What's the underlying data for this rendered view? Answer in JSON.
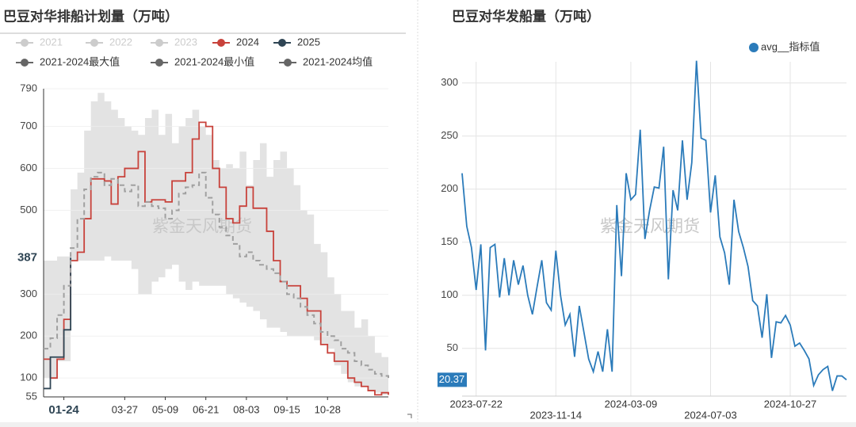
{
  "chart_data": [
    {
      "type": "line",
      "title": "巴豆对华排船计划量（万吨）",
      "watermark": "紫金天风期货",
      "step": true,
      "grid": true,
      "categories": [
        null,
        null,
        null,
        "01-24",
        null,
        null,
        null,
        null,
        null,
        null,
        null,
        null,
        "03-27",
        null,
        null,
        null,
        null,
        null,
        "05-09",
        null,
        null,
        null,
        null,
        null,
        "06-21",
        null,
        null,
        null,
        null,
        null,
        "08-03",
        null,
        null,
        null,
        null,
        null,
        "09-15",
        null,
        null,
        null,
        null,
        null,
        "10-28",
        null,
        null,
        null,
        null,
        null,
        null,
        null,
        null,
        null
      ],
      "x_pointer": 3,
      "ylim": [
        55,
        790
      ],
      "yticks": [
        55,
        100,
        200,
        300,
        500,
        600,
        700,
        790
      ],
      "series": [
        {
          "name": "2021",
          "color": "#cccccc",
          "visible": false
        },
        {
          "name": "2022",
          "color": "#cccccc",
          "visible": false
        },
        {
          "name": "2023",
          "color": "#cccccc",
          "visible": false
        },
        {
          "name": "2024",
          "color": "#c8423b",
          "values": [
            145,
            100,
            145,
            240,
            380,
            400,
            480,
            575,
            575,
            570,
            515,
            580,
            600,
            600,
            640,
            520,
            525,
            525,
            520,
            570,
            570,
            590,
            670,
            710,
            700,
            600,
            555,
            480,
            470,
            510,
            555,
            505,
            505,
            450,
            380,
            330,
            320,
            320,
            290,
            260,
            260,
            180,
            160,
            140,
            140,
            100,
            90,
            80,
            70,
            60,
            65,
            60
          ]
        },
        {
          "name": "2025",
          "color": "#2f4554",
          "values": [
            75,
            150,
            150,
            215,
            387,
            null,
            null,
            null,
            null,
            null,
            null,
            null,
            null,
            null,
            null,
            null,
            null,
            null,
            null,
            null,
            null,
            null,
            null,
            null,
            null,
            null,
            null,
            null,
            null,
            null,
            null,
            null,
            null,
            null,
            null,
            null,
            null,
            null,
            null,
            null,
            null,
            null,
            null,
            null,
            null,
            null,
            null,
            null,
            null,
            null,
            null,
            null
          ]
        },
        {
          "name": "2021-2024最大值",
          "color": "#666666",
          "area": "#e3e3e3",
          "values": [
            380,
            380,
            390,
            390,
            550,
            590,
            690,
            760,
            780,
            760,
            740,
            720,
            700,
            690,
            680,
            720,
            740,
            680,
            730,
            660,
            700,
            720,
            740,
            700,
            680,
            620,
            600,
            610,
            600,
            640,
            560,
            620,
            660,
            580,
            620,
            640,
            600,
            560,
            500,
            490,
            420,
            400,
            340,
            300,
            260,
            260,
            220,
            240,
            200,
            160,
            150,
            150
          ]
        },
        {
          "name": "2021-2024最小值",
          "color": "#666666",
          "area": "#ffffff",
          "values": [
            100,
            100,
            140,
            140,
            380,
            380,
            380,
            380,
            380,
            390,
            380,
            380,
            380,
            360,
            300,
            300,
            330,
            340,
            360,
            370,
            330,
            310,
            330,
            320,
            320,
            320,
            320,
            300,
            290,
            280,
            270,
            260,
            240,
            220,
            220,
            210,
            200,
            200,
            200,
            200,
            190,
            180,
            170,
            130,
            110,
            90,
            80,
            80,
            70,
            65,
            60,
            55
          ]
        },
        {
          "name": "2021-2024均值",
          "color": "#666666",
          "dash": true,
          "line": "#a0a0a0",
          "values": [
            170,
            195,
            250,
            320,
            410,
            480,
            550,
            580,
            590,
            560,
            575,
            560,
            545,
            560,
            510,
            520,
            510,
            505,
            480,
            500,
            540,
            555,
            560,
            590,
            530,
            490,
            460,
            440,
            420,
            390,
            400,
            380,
            370,
            360,
            350,
            330,
            300,
            290,
            270,
            250,
            230,
            210,
            200,
            190,
            170,
            160,
            140,
            130,
            120,
            110,
            105,
            100
          ]
        }
      ]
    },
    {
      "type": "line",
      "title": "巴豆对华发船量（万吨）",
      "watermark": "紫金天风期货",
      "grid": true,
      "legend": "top-right",
      "categories": [
        null,
        null,
        null,
        "2023-07-22",
        null,
        null,
        null,
        null,
        null,
        null,
        null,
        null,
        null,
        null,
        null,
        null,
        null,
        null,
        null,
        null,
        "2023-11-14",
        null,
        null,
        null,
        null,
        null,
        null,
        null,
        null,
        null,
        null,
        null,
        null,
        null,
        null,
        null,
        "2024-03-09",
        null,
        null,
        null,
        null,
        null,
        null,
        null,
        null,
        null,
        null,
        null,
        null,
        null,
        null,
        null,
        null,
        "2024-07-03",
        null,
        null,
        null,
        null,
        null,
        null,
        null,
        null,
        null,
        null,
        null,
        null,
        null,
        null,
        null,
        null,
        "2024-10-27",
        null,
        null,
        null,
        null,
        null,
        null,
        null,
        null,
        null,
        null,
        null,
        null
      ],
      "ylim": [
        5,
        320
      ],
      "yticks": [
        50,
        100,
        150,
        200,
        250,
        300
      ],
      "series": [
        {
          "name": "avg__指标值",
          "color": "#2b7bba",
          "values": [
            215,
            165,
            145,
            105,
            148,
            48,
            145,
            148,
            98,
            135,
            100,
            133,
            110,
            128,
            100,
            82,
            108,
            133,
            93,
            86,
            142,
            100,
            72,
            82,
            42,
            90,
            65,
            40,
            28,
            47,
            28,
            68,
            28,
            185,
            118,
            215,
            190,
            195,
            256,
            153,
            180,
            202,
            201,
            240,
            115,
            199,
            180,
            246,
            190,
            225,
            321,
            248,
            246,
            178,
            213,
            155,
            140,
            110,
            190,
            160,
            145,
            127,
            95,
            90,
            60,
            101,
            41,
            75,
            74,
            81,
            72,
            52,
            55,
            48,
            40,
            15,
            25,
            30,
            33,
            10,
            24,
            24,
            20.37
          ]
        }
      ]
    }
  ]
}
